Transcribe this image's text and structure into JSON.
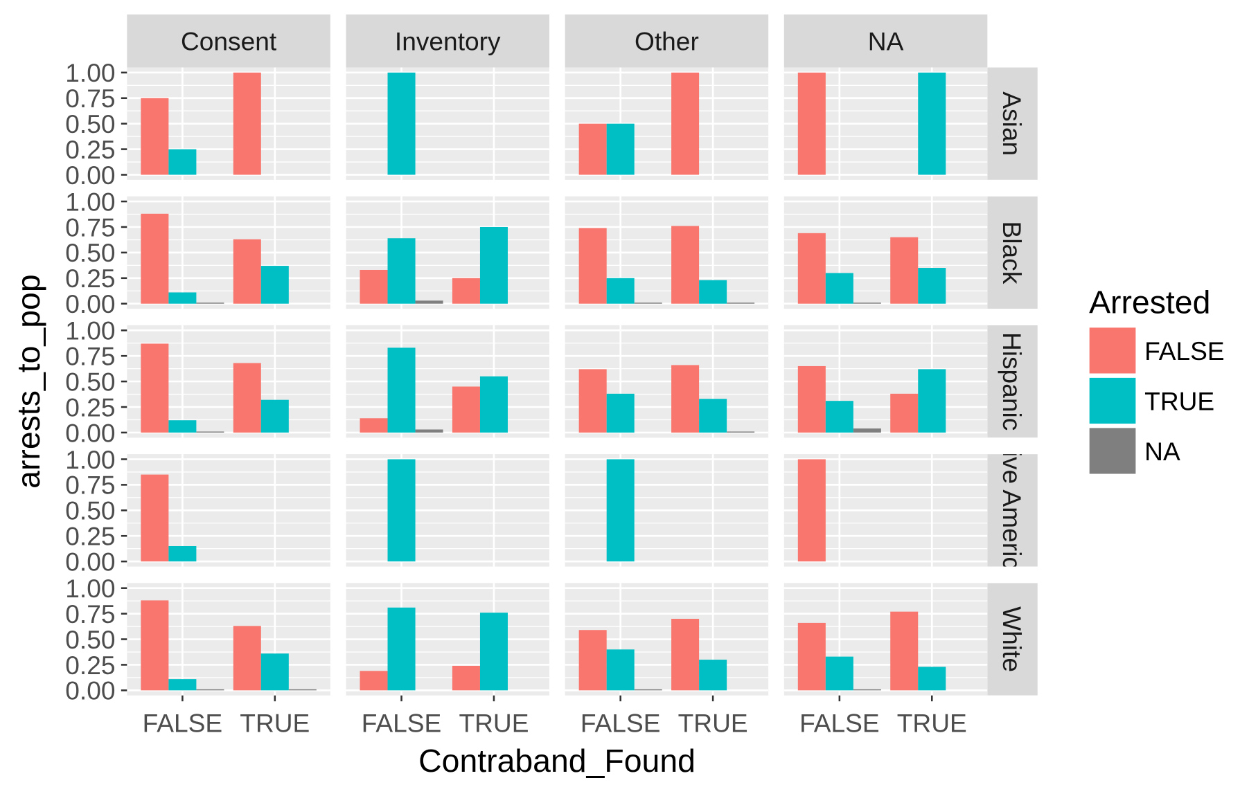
{
  "chart_data": {
    "type": "bar",
    "xlabel": "Contraband_Found",
    "ylabel": "arrests_to_pop",
    "categories": [
      "FALSE",
      "TRUE"
    ],
    "ylim": [
      0,
      1
    ],
    "yticks": [
      "0.00",
      "0.25",
      "0.50",
      "0.75",
      "1.00"
    ],
    "grid": true,
    "facet_cols": [
      "Consent",
      "Inventory",
      "Other",
      "NA"
    ],
    "facet_rows": [
      "Asian",
      "Black",
      "Hispanic",
      "ive Americ",
      "White"
    ],
    "legend": {
      "title": "Arrested",
      "position": "right"
    },
    "series": [
      {
        "name": "FALSE",
        "color": "#F8766D",
        "values": [
          [
            [
              0.75,
              1.0
            ],
            [
              null,
              null
            ],
            [
              0.5,
              1.0
            ],
            [
              1.0,
              null
            ]
          ],
          [
            [
              0.88,
              0.63
            ],
            [
              0.33,
              0.25
            ],
            [
              0.74,
              0.76
            ],
            [
              0.69,
              0.65
            ]
          ],
          [
            [
              0.87,
              0.68
            ],
            [
              0.14,
              0.45
            ],
            [
              0.62,
              0.66
            ],
            [
              0.65,
              0.38
            ]
          ],
          [
            [
              0.85,
              null
            ],
            [
              null,
              null
            ],
            [
              null,
              null
            ],
            [
              1.0,
              null
            ]
          ],
          [
            [
              0.88,
              0.63
            ],
            [
              0.19,
              0.24
            ],
            [
              0.59,
              0.7
            ],
            [
              0.66,
              0.77
            ]
          ]
        ]
      },
      {
        "name": "TRUE",
        "color": "#00BFC4",
        "values": [
          [
            [
              0.25,
              null
            ],
            [
              1.0,
              null
            ],
            [
              0.5,
              null
            ],
            [
              null,
              1.0
            ]
          ],
          [
            [
              0.11,
              0.37
            ],
            [
              0.64,
              0.75
            ],
            [
              0.25,
              0.23
            ],
            [
              0.3,
              0.35
            ]
          ],
          [
            [
              0.12,
              0.32
            ],
            [
              0.83,
              0.55
            ],
            [
              0.38,
              0.33
            ],
            [
              0.31,
              0.62
            ]
          ],
          [
            [
              0.15,
              null
            ],
            [
              1.0,
              null
            ],
            [
              1.0,
              null
            ],
            [
              null,
              null
            ]
          ],
          [
            [
              0.11,
              0.36
            ],
            [
              0.81,
              0.76
            ],
            [
              0.4,
              0.3
            ],
            [
              0.33,
              0.23
            ]
          ]
        ]
      },
      {
        "name": "NA",
        "color": "#7F7F7F",
        "values": [
          [
            [
              null,
              null
            ],
            [
              null,
              null
            ],
            [
              null,
              null
            ],
            [
              null,
              null
            ]
          ],
          [
            [
              0.01,
              null
            ],
            [
              0.03,
              null
            ],
            [
              0.01,
              0.01
            ],
            [
              0.01,
              null
            ]
          ],
          [
            [
              0.01,
              null
            ],
            [
              0.03,
              null
            ],
            [
              null,
              0.01
            ],
            [
              0.04,
              null
            ]
          ],
          [
            [
              null,
              null
            ],
            [
              null,
              null
            ],
            [
              null,
              null
            ],
            [
              null,
              null
            ]
          ],
          [
            [
              0.01,
              0.01
            ],
            [
              null,
              null
            ],
            [
              0.01,
              null
            ],
            [
              0.01,
              null
            ]
          ]
        ]
      }
    ]
  }
}
